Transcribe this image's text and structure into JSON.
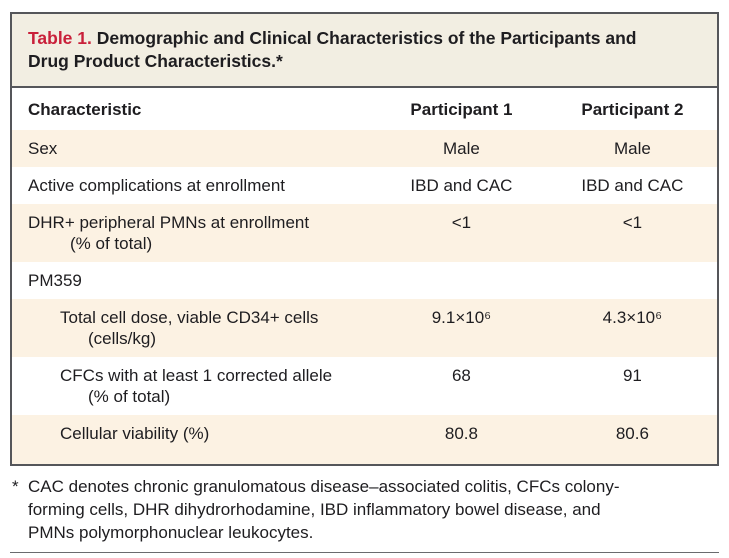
{
  "table": {
    "title": {
      "label": "Table 1.",
      "line1": "Demographic and Clinical Characteristics of the Participants and",
      "line2": "Drug Product Characteristics.*"
    },
    "header": {
      "characteristic": "Characteristic",
      "participant1": "Participant 1",
      "participant2": "Participant 2"
    },
    "rows": [
      {
        "label": "Sex",
        "p1": "Male",
        "p2": "Male"
      },
      {
        "label": "Active complications at enrollment",
        "p1": "IBD and CAC",
        "p2": "IBD and CAC"
      },
      {
        "label": "DHR+ peripheral PMNs at enrollment",
        "label_line2": "(% of total)",
        "p1": "<1",
        "p2": "<1"
      },
      {
        "label": "PM359",
        "p1": "",
        "p2": ""
      },
      {
        "label": "Total cell dose, viable CD34+ cells",
        "label_line2": "(cells/kg)",
        "p1": "9.1×10⁶",
        "p2": "4.3×10⁶"
      },
      {
        "label": "CFCs with at least 1 corrected allele",
        "label_line2": "(% of total)",
        "p1": "68",
        "p2": "91"
      },
      {
        "label": "Cellular viability (%)",
        "p1": "80.8",
        "p2": "80.6"
      }
    ]
  },
  "footnote": {
    "marker": "*",
    "lines": [
      "CAC denotes chronic granulomatous disease–associated colitis, CFCs colony-",
      "forming cells, DHR dihydrorhodamine, IBD inflammatory bowel disease, and",
      "PMNs polymorphonuclear leukocytes."
    ]
  },
  "colors": {
    "accent_red": "#c9203a",
    "band_beige": "#f2eee2",
    "row_cream": "#fcf2e3",
    "border_gray": "#55565a"
  }
}
